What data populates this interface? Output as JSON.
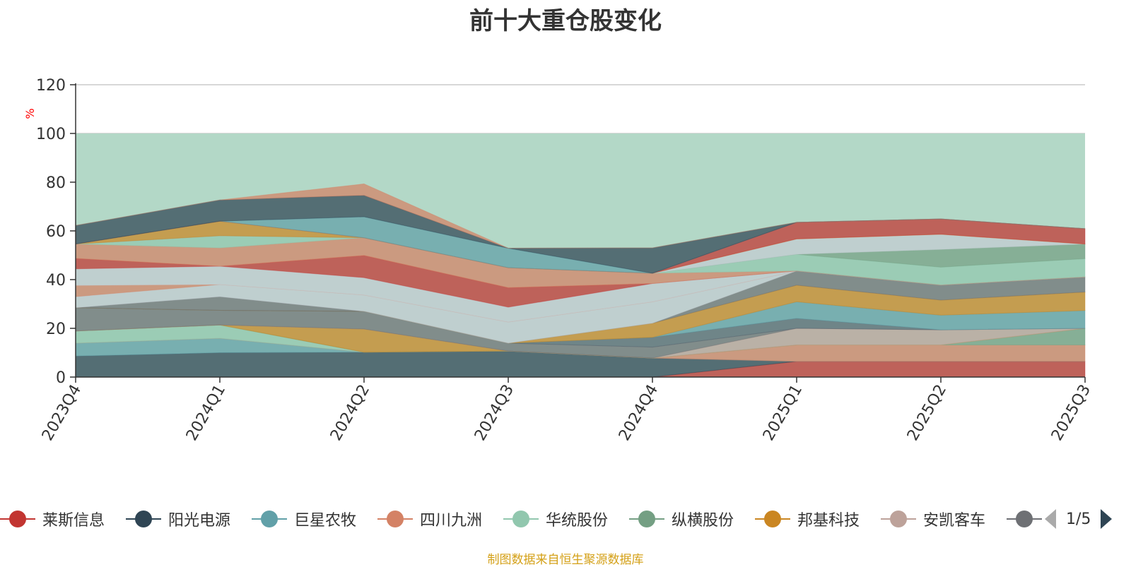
{
  "chart_data": {
    "type": "area",
    "title": "前十大重仓股变化",
    "ylabel": "%",
    "ylim": [
      0,
      120
    ],
    "yticks": [
      0,
      20,
      40,
      60,
      80,
      100,
      120
    ],
    "categories": [
      "2023Q4",
      "2024Q1",
      "2024Q2",
      "2024Q3",
      "2024Q4",
      "2025Q1",
      "2025Q2",
      "2025Q3"
    ],
    "total_band": {
      "value": 100,
      "color": "#b3d8c7"
    },
    "legend_position": "bottom",
    "series": [
      {
        "name": "莱斯信息",
        "color": "#c23531",
        "values": [
          0,
          0,
          0,
          0,
          0,
          6.4,
          6.4,
          6.4
        ]
      },
      {
        "name": "阳光电源",
        "color": "#2f4554",
        "values": [
          8.6,
          10,
          10.2,
          10.7,
          7.8,
          0,
          0,
          0
        ]
      },
      {
        "name": "巨星农牧",
        "color": "#61a0a8",
        "values": [
          5.3,
          5.9,
          0,
          0,
          0,
          0,
          0,
          0
        ]
      },
      {
        "name": "四川九洲",
        "color": "#d48265",
        "values": [
          0,
          0,
          0,
          0,
          0,
          6.8,
          6.8,
          6.8
        ]
      },
      {
        "name": "华统股份",
        "color": "#91c7ae",
        "values": [
          5.0,
          5.5,
          0,
          0,
          0,
          0,
          0,
          0
        ]
      },
      {
        "name": "纵横股份",
        "color": "#749f83",
        "values": [
          0,
          0,
          0,
          0,
          0,
          0,
          0,
          6.8
        ]
      },
      {
        "name": "邦基科技",
        "color": "#ca8622",
        "values": [
          0,
          0,
          9.5,
          0,
          0,
          0,
          0,
          0
        ]
      },
      {
        "name": "安凯客车",
        "color": "#bda29a",
        "values": [
          0,
          0,
          0,
          0,
          0,
          6.8,
          6.2,
          0
        ]
      },
      {
        "name": "",
        "color": "#6e7074",
        "values": [
          9.6,
          6.0,
          7.3,
          3.2,
          4.5,
          0,
          0,
          0
        ]
      },
      {
        "name": "",
        "color": "#546570",
        "values": [
          0,
          0,
          0,
          0,
          4.0,
          4.1,
          0,
          0
        ]
      },
      {
        "name": "",
        "color": "#61a0a8",
        "values": [
          0,
          0,
          0,
          0,
          0,
          6.8,
          6.0,
          7.3
        ]
      },
      {
        "name": "",
        "color": "#ca8622",
        "values": [
          0,
          0,
          0,
          0,
          5.8,
          6.8,
          6.2,
          7.6
        ]
      },
      {
        "name": "",
        "color": "#6e7074",
        "values": [
          0,
          5.6,
          0,
          0,
          0,
          5.9,
          6.2,
          6.2
        ]
      },
      {
        "name": "",
        "color": "#c4ccd3",
        "values": [
          4.5,
          5.0,
          6.7,
          8.7,
          8.8,
          0,
          0,
          0
        ]
      },
      {
        "name": "",
        "color": "#d48265",
        "values": [
          4.6,
          0,
          0,
          0,
          0,
          0,
          0,
          0
        ]
      },
      {
        "name": "",
        "color": "#c4ccd3",
        "values": [
          6.8,
          7.5,
          7.1,
          6.1,
          7.5,
          0,
          0,
          0
        ]
      },
      {
        "name": "",
        "color": "#c23531",
        "values": [
          4.3,
          0,
          9.1,
          8.0,
          0,
          0,
          0,
          0
        ]
      },
      {
        "name": "",
        "color": "#d48265",
        "values": [
          5.9,
          7.5,
          7.3,
          8.2,
          4.2,
          0,
          0,
          0
        ]
      },
      {
        "name": "",
        "color": "#91c7ae",
        "values": [
          0,
          5.0,
          0,
          0,
          0,
          6.8,
          7.3,
          7.5
        ]
      },
      {
        "name": "",
        "color": "#749f83",
        "values": [
          0,
          0,
          0,
          0,
          0,
          0,
          7.3,
          6.0
        ]
      },
      {
        "name": "",
        "color": "#c4ccd3",
        "values": [
          0,
          0,
          0,
          0,
          0,
          6.3,
          6.2,
          0
        ]
      },
      {
        "name": "",
        "color": "#ca8622",
        "values": [
          0,
          6.0,
          0,
          0,
          0,
          0,
          0,
          0
        ]
      },
      {
        "name": "",
        "color": "#c23531",
        "values": [
          0,
          0,
          0,
          0,
          0,
          6.8,
          6.3,
          6.3
        ]
      },
      {
        "name": "",
        "color": "#61a0a8",
        "values": [
          0,
          0,
          8.6,
          8.0,
          0,
          0,
          0,
          0
        ]
      },
      {
        "name": "",
        "color": "#2f4554",
        "values": [
          7.6,
          8.7,
          8.8,
          0,
          10.4,
          0,
          0,
          0
        ]
      },
      {
        "name": "",
        "color": "#d48265",
        "values": [
          0,
          0,
          4.7,
          0,
          0,
          0,
          0,
          0
        ]
      }
    ]
  },
  "legend": {
    "items": [
      {
        "label": "莱斯信息",
        "color": "#c23531"
      },
      {
        "label": "阳光电源",
        "color": "#2f4554"
      },
      {
        "label": "巨星农牧",
        "color": "#61a0a8"
      },
      {
        "label": "四川九洲",
        "color": "#d48265"
      },
      {
        "label": "华统股份",
        "color": "#91c7ae"
      },
      {
        "label": "纵横股份",
        "color": "#749f83"
      },
      {
        "label": "邦基科技",
        "color": "#ca8622"
      },
      {
        "label": "安凯客车",
        "color": "#bda29a"
      },
      {
        "label": "",
        "color": "#6e7074"
      }
    ],
    "page": "1/5"
  },
  "source_note": "制图数据来自恒生聚源数据库"
}
